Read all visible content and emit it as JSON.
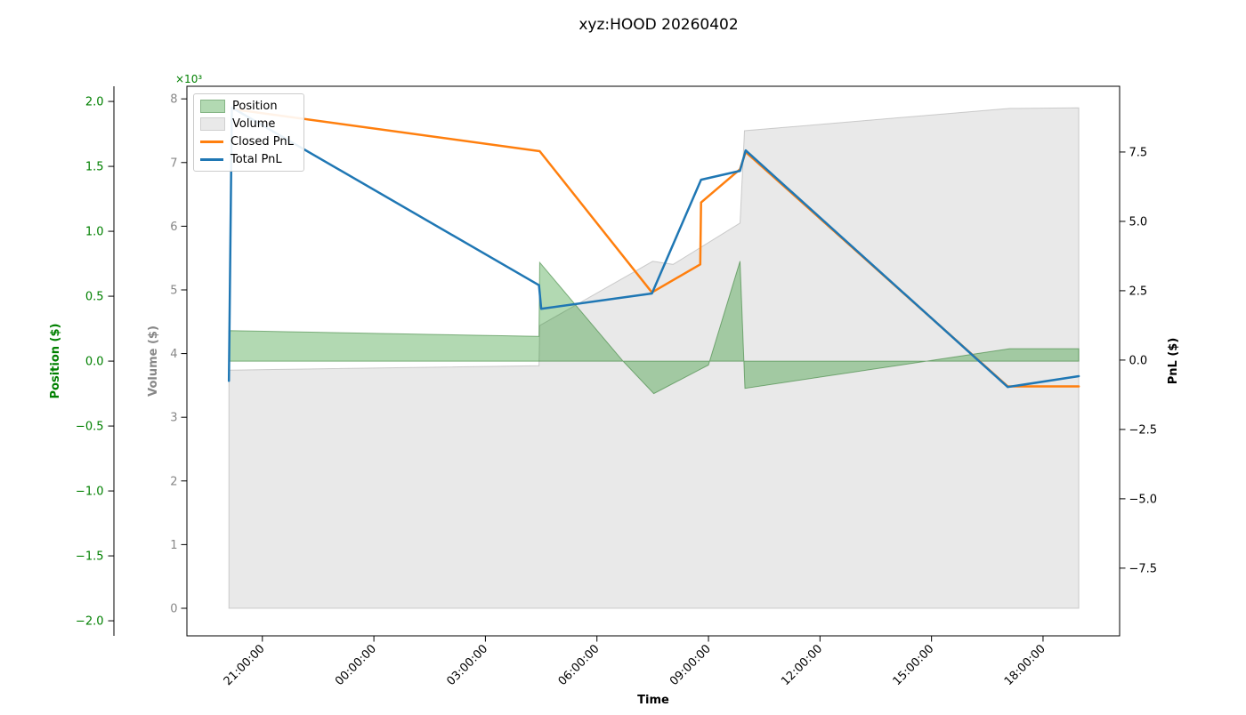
{
  "title": "xyz:HOOD 20260402",
  "legend": {
    "items": [
      {
        "label": "Position",
        "swatch": "patch",
        "color": "#008000",
        "fill_opacity": 0.3,
        "border": "#85b585"
      },
      {
        "label": "Volume",
        "swatch": "patch",
        "color": "#d3d3d3",
        "fill_opacity": 0.5,
        "border": "#d0d0d0"
      },
      {
        "label": "Closed PnL",
        "swatch": "line",
        "color": "#ff7f0e"
      },
      {
        "label": "Total PnL",
        "swatch": "line",
        "color": "#1f77b4"
      }
    ]
  },
  "chart_data": {
    "type": "mixed-area-line-dual-axis",
    "title": "xyz:HOOD 20260402",
    "xlabel": "Time",
    "x_unit": "hours since first day 00:00 (42 = 18:00:00 next day)",
    "axes": {
      "x": {
        "label": "Time",
        "lim": [
          18.97,
          44.06
        ],
        "tick_values": [
          21,
          24,
          27,
          30,
          33,
          36,
          39,
          42
        ],
        "tick_labels": [
          "21:00:00",
          "00:00:00",
          "03:00:00",
          "06:00:00",
          "09:00:00",
          "12:00:00",
          "15:00:00",
          "18:00:00"
        ],
        "tick_rotation_deg": 45
      },
      "position": {
        "label": "Position ($)",
        "color": "#008000",
        "lim": [
          -2.116,
          2.117
        ],
        "tick_values": [
          2.0,
          1.5,
          1.0,
          0.5,
          0.0,
          -0.5,
          -1.0,
          -1.5,
          -2.0
        ],
        "tick_labels": [
          "2.0",
          "1.5",
          "1.0",
          "0.5",
          "0.0",
          "−0.5",
          "−1.0",
          "−1.5",
          "−2.0"
        ]
      },
      "volume": {
        "label": "Volume ($)",
        "color": "#878787",
        "offset": "×10³",
        "offset_color": "#008000",
        "lim": [
          -0.433,
          8.198
        ],
        "tick_values": [
          8,
          7,
          6,
          5,
          4,
          3,
          2,
          1,
          0
        ],
        "tick_labels": [
          "8",
          "7",
          "6",
          "5",
          "4",
          "3",
          "2",
          "1",
          "0"
        ]
      },
      "pnl": {
        "label": "PnL ($)",
        "color": "#000000",
        "lim": [
          -9.94,
          9.87
        ],
        "tick_values": [
          7.5,
          5.0,
          2.5,
          0.0,
          -2.5,
          -5.0,
          -7.5
        ],
        "tick_labels": [
          "7.5",
          "5.0",
          "2.5",
          "0.0",
          "−2.5",
          "−5.0",
          "−7.5"
        ]
      }
    },
    "series": [
      {
        "name": "Position",
        "type": "area",
        "axis": "position",
        "color": "#008000",
        "fill_opacity": 0.3,
        "edge_color": "#2d7a2d",
        "edge_opacity": 0.55,
        "baseline": 0,
        "points": [
          [
            20.1,
            0.235
          ],
          [
            28.44,
            0.19
          ],
          [
            28.46,
            0.76
          ],
          [
            30.7,
            0.0
          ],
          [
            31.53,
            -0.25
          ],
          [
            32.8,
            -0.06
          ],
          [
            33.0,
            -0.03
          ],
          [
            33.85,
            0.77
          ],
          [
            33.98,
            -0.21
          ],
          [
            41.1,
            0.096
          ],
          [
            42.96,
            0.096
          ]
        ]
      },
      {
        "name": "Volume",
        "type": "area",
        "axis": "volume",
        "color": "#d3d3d3",
        "fill_opacity": 0.5,
        "edge_color": "#9a9a9a",
        "edge_opacity": 0.45,
        "baseline": 0,
        "points": [
          [
            20.1,
            3.74
          ],
          [
            28.44,
            3.81
          ],
          [
            28.46,
            4.44
          ],
          [
            31.5,
            5.45
          ],
          [
            32.05,
            5.4
          ],
          [
            33.85,
            6.05
          ],
          [
            33.97,
            7.5
          ],
          [
            41.1,
            7.85
          ],
          [
            42.96,
            7.86
          ]
        ]
      },
      {
        "name": "Closed PnL",
        "type": "line",
        "axis": "pnl",
        "color": "#ff7f0e",
        "line_width": 2.5,
        "points": [
          [
            20.18,
            9.05
          ],
          [
            28.46,
            7.53
          ],
          [
            31.48,
            2.44
          ],
          [
            32.78,
            3.45
          ],
          [
            32.8,
            5.68
          ],
          [
            33.85,
            6.88
          ],
          [
            34.0,
            7.5
          ],
          [
            41.05,
            -0.95
          ],
          [
            42.96,
            -0.95
          ]
        ]
      },
      {
        "name": "Total PnL",
        "type": "line",
        "axis": "pnl",
        "color": "#1f77b4",
        "line_width": 2.5,
        "points": [
          [
            20.1,
            -0.75
          ],
          [
            20.18,
            9.1
          ],
          [
            28.44,
            2.7
          ],
          [
            28.5,
            1.85
          ],
          [
            31.48,
            2.4
          ],
          [
            32.8,
            6.5
          ],
          [
            33.85,
            6.82
          ],
          [
            34.0,
            7.56
          ],
          [
            41.05,
            -0.97
          ],
          [
            42.96,
            -0.58
          ]
        ]
      }
    ],
    "grid": false,
    "legend_position": "upper-left-inside"
  }
}
